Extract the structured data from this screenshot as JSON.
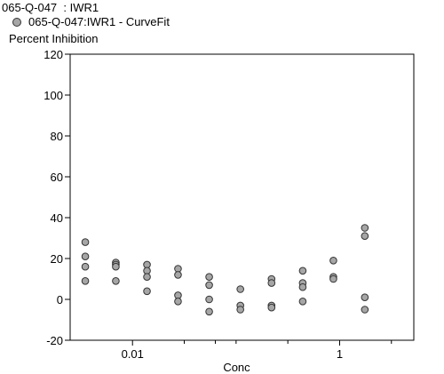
{
  "title": "065-Q-047  : IWR1",
  "legend": {
    "label": "065-Q-047:IWR1 - CurveFit",
    "marker_color": "#a6a6a6"
  },
  "chart_data": {
    "type": "scatter",
    "ylabel": "Percent Inhibition",
    "xlabel": "Conc",
    "x_scale": "log",
    "xlim": [
      0.0025,
      5.2
    ],
    "ylim": [
      -20,
      120
    ],
    "y_ticks": [
      -20,
      0,
      20,
      40,
      60,
      80,
      100,
      120
    ],
    "x_tick_labels": [
      {
        "value": 0.01,
        "label": "0.01"
      },
      {
        "value": 1,
        "label": "1"
      }
    ],
    "x_minor_ticks": [
      0.0316,
      0.0631,
      0.1,
      0.316,
      3.16
    ],
    "grid": false,
    "point_color": "#a6a6a6",
    "points": [
      {
        "x": 0.0035,
        "y": 28
      },
      {
        "x": 0.0035,
        "y": 21
      },
      {
        "x": 0.0035,
        "y": 16
      },
      {
        "x": 0.0035,
        "y": 9
      },
      {
        "x": 0.0069,
        "y": 18
      },
      {
        "x": 0.0069,
        "y": 17
      },
      {
        "x": 0.0069,
        "y": 16
      },
      {
        "x": 0.0069,
        "y": 9
      },
      {
        "x": 0.0138,
        "y": 17
      },
      {
        "x": 0.0138,
        "y": 14
      },
      {
        "x": 0.0138,
        "y": 11
      },
      {
        "x": 0.0138,
        "y": 4
      },
      {
        "x": 0.0275,
        "y": 15
      },
      {
        "x": 0.0275,
        "y": 12
      },
      {
        "x": 0.0275,
        "y": 2
      },
      {
        "x": 0.0275,
        "y": -1
      },
      {
        "x": 0.055,
        "y": 11
      },
      {
        "x": 0.055,
        "y": 7
      },
      {
        "x": 0.055,
        "y": 0
      },
      {
        "x": 0.055,
        "y": -6
      },
      {
        "x": 0.11,
        "y": 5
      },
      {
        "x": 0.11,
        "y": -3
      },
      {
        "x": 0.11,
        "y": -5
      },
      {
        "x": 0.22,
        "y": 10
      },
      {
        "x": 0.22,
        "y": 8
      },
      {
        "x": 0.22,
        "y": -3
      },
      {
        "x": 0.22,
        "y": -4
      },
      {
        "x": 0.44,
        "y": 14
      },
      {
        "x": 0.44,
        "y": 8
      },
      {
        "x": 0.44,
        "y": 6
      },
      {
        "x": 0.44,
        "y": -1
      },
      {
        "x": 0.87,
        "y": 19
      },
      {
        "x": 0.87,
        "y": 11
      },
      {
        "x": 0.87,
        "y": 10
      },
      {
        "x": 1.75,
        "y": 35
      },
      {
        "x": 1.75,
        "y": 31
      },
      {
        "x": 1.75,
        "y": 1
      },
      {
        "x": 1.75,
        "y": -5
      }
    ]
  }
}
